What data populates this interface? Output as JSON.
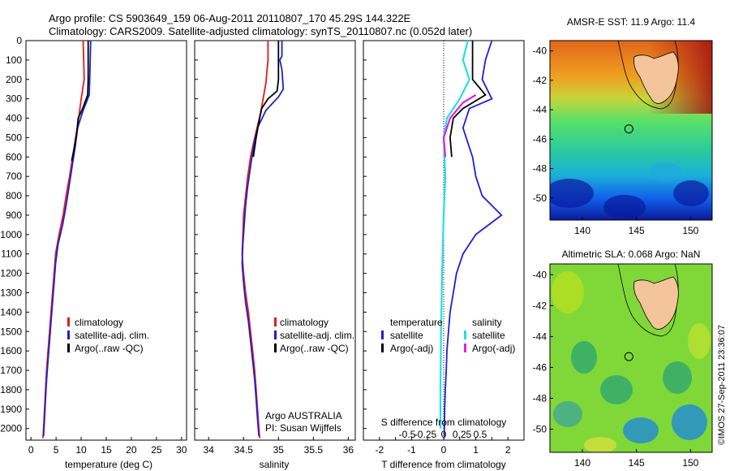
{
  "header": {
    "line1": "Argo profile: CS 5903649_159 06-Aug-2011 20110807_170 45.29S 144.322E",
    "line2": "Climatology: CARS2009. Satellite-adjusted climatology: synTS_20110807.nc (0.052d later)"
  },
  "depth_ticks": [
    "0",
    "100",
    "200",
    "300",
    "400",
    "500",
    "600",
    "700",
    "800",
    "900",
    "1000",
    "1100",
    "1200",
    "1300",
    "1400",
    "1500",
    "1600",
    "1700",
    "1800",
    "1900",
    "2000"
  ],
  "colors": {
    "climatology": "#e41a1c",
    "satellite": "#1f1fd0",
    "argo": "#000000",
    "cyan": "#22e0e0",
    "magenta": "#e020e0"
  },
  "chart_data": [
    {
      "type": "line",
      "panel": "temperature",
      "xlabel": "temperature (deg C)",
      "xlim": [
        -1,
        31
      ],
      "ylim": [
        2060,
        0
      ],
      "xticks": [
        0,
        5,
        10,
        15,
        20,
        25,
        30
      ],
      "legend": [
        "climatology",
        "satellite-adj. clim.",
        "Argo(..raw -QC)"
      ],
      "series": [
        {
          "name": "climatology",
          "color": "#e41a1c",
          "points": [
            [
              10.4,
              0
            ],
            [
              10.5,
              100
            ],
            [
              10.6,
              200
            ],
            [
              10.0,
              300
            ],
            [
              9.5,
              400
            ],
            [
              8.9,
              500
            ],
            [
              8.3,
              600
            ],
            [
              7.7,
              700
            ],
            [
              7.0,
              800
            ],
            [
              6.4,
              900
            ],
            [
              5.6,
              1000
            ],
            [
              4.9,
              1100
            ],
            [
              4.6,
              1200
            ],
            [
              4.3,
              1300
            ],
            [
              4.0,
              1400
            ],
            [
              3.7,
              1500
            ],
            [
              3.4,
              1600
            ],
            [
              3.1,
              1700
            ],
            [
              2.9,
              1800
            ],
            [
              2.7,
              1900
            ],
            [
              2.5,
              2000
            ],
            [
              2.4,
              2050
            ]
          ]
        },
        {
          "name": "satellite-adj. clim.",
          "color": "#1f1fd0",
          "points": [
            [
              11.9,
              0
            ],
            [
              11.8,
              100
            ],
            [
              11.7,
              200
            ],
            [
              11.6,
              280
            ],
            [
              10.4,
              360
            ],
            [
              9.3,
              450
            ],
            [
              8.8,
              550
            ],
            [
              8.2,
              650
            ],
            [
              7.6,
              750
            ],
            [
              7.0,
              850
            ],
            [
              6.3,
              950
            ],
            [
              5.4,
              1050
            ],
            [
              4.9,
              1150
            ],
            [
              4.6,
              1250
            ],
            [
              4.3,
              1350
            ],
            [
              4.0,
              1450
            ],
            [
              3.7,
              1550
            ],
            [
              3.4,
              1650
            ],
            [
              3.1,
              1750
            ],
            [
              2.9,
              1850
            ],
            [
              2.7,
              1950
            ],
            [
              2.5,
              2040
            ]
          ]
        },
        {
          "name": "Argo(..raw -QC)",
          "color": "#000000",
          "points": [
            [
              11.4,
              0
            ],
            [
              11.4,
              100
            ],
            [
              11.4,
              200
            ],
            [
              11.3,
              280
            ],
            [
              10.3,
              350
            ],
            [
              9.4,
              400
            ],
            [
              9.1,
              480
            ],
            [
              8.6,
              560
            ],
            [
              8.1,
              620
            ]
          ]
        }
      ]
    },
    {
      "type": "line",
      "panel": "salinity",
      "xlabel": "salinity",
      "xlim": [
        33.8,
        36.1
      ],
      "ylim": [
        2060,
        0
      ],
      "xticks": [
        34,
        34.5,
        35,
        35.5,
        36
      ],
      "xtick_labels": [
        "34",
        "34.5",
        "35",
        "35.5",
        "36"
      ],
      "legend": [
        "climatology",
        "satellite-adj. clim.",
        "Argo(..raw -QC)"
      ],
      "notes": [
        "Argo AUSTRALIA",
        "PI: Susan Wijffels"
      ],
      "series": [
        {
          "name": "climatology",
          "color": "#e41a1c",
          "points": [
            [
              34.85,
              0
            ],
            [
              34.85,
              100
            ],
            [
              34.82,
              220
            ],
            [
              34.78,
              300
            ],
            [
              34.74,
              380
            ],
            [
              34.66,
              500
            ],
            [
              34.6,
              600
            ],
            [
              34.56,
              700
            ],
            [
              34.53,
              800
            ],
            [
              34.5,
              900
            ],
            [
              34.49,
              1000
            ],
            [
              34.48,
              1100
            ],
            [
              34.5,
              1200
            ],
            [
              34.53,
              1300
            ],
            [
              34.57,
              1400
            ],
            [
              34.6,
              1500
            ],
            [
              34.63,
              1600
            ],
            [
              34.66,
              1700
            ],
            [
              34.68,
              1800
            ],
            [
              34.7,
              1900
            ],
            [
              34.72,
              2000
            ],
            [
              34.73,
              2050
            ]
          ]
        },
        {
          "name": "satellite-adj. clim.",
          "color": "#1f1fd0",
          "points": [
            [
              35.05,
              0
            ],
            [
              35.05,
              80
            ],
            [
              35.02,
              100
            ],
            [
              35.05,
              150
            ],
            [
              35.07,
              250
            ],
            [
              35.0,
              290
            ],
            [
              34.82,
              360
            ],
            [
              34.7,
              450
            ],
            [
              34.64,
              550
            ],
            [
              34.6,
              650
            ],
            [
              34.56,
              750
            ],
            [
              34.53,
              850
            ],
            [
              34.51,
              950
            ],
            [
              34.49,
              1050
            ],
            [
              34.48,
              1150
            ],
            [
              34.5,
              1250
            ],
            [
              34.53,
              1350
            ],
            [
              34.57,
              1450
            ],
            [
              34.6,
              1550
            ],
            [
              34.63,
              1650
            ],
            [
              34.66,
              1750
            ],
            [
              34.68,
              1850
            ],
            [
              34.7,
              1950
            ],
            [
              34.72,
              2040
            ]
          ]
        },
        {
          "name": "Argo(..raw -QC)",
          "color": "#000000",
          "points": [
            [
              35.0,
              0
            ],
            [
              35.0,
              100
            ],
            [
              35.0,
              200
            ],
            [
              34.98,
              260
            ],
            [
              34.85,
              300
            ],
            [
              34.76,
              350
            ],
            [
              34.72,
              420
            ],
            [
              34.68,
              500
            ],
            [
              34.64,
              600
            ]
          ]
        }
      ]
    },
    {
      "type": "line",
      "panel": "difference",
      "xlabel_top": "S difference from climatology",
      "xlabel": "T difference from climatology",
      "xlim": [
        -2.5,
        2.5
      ],
      "ylim": [
        2060,
        0
      ],
      "xticks": [
        -2,
        -1.5,
        -1,
        -0.5,
        0,
        0.5,
        1,
        1.5,
        2
      ],
      "xtick_labels": [
        "-2",
        "",
        "-1",
        "",
        "0",
        "",
        "1",
        "",
        "2"
      ],
      "sticks": [
        -0.5,
        -0.25,
        0,
        0.25,
        0.5
      ],
      "stick_labels": [
        "-0.5",
        "-0.25",
        "0",
        "0.25",
        "0.5"
      ],
      "legend": {
        "titles": [
          "temperature",
          "salinity"
        ],
        "left": [
          "satellite",
          "Argo(-adj)"
        ],
        "right": [
          "satellite",
          "Argo(-adj)"
        ]
      },
      "series": [
        {
          "name": "temperature satellite",
          "color": "#1f1fd0",
          "points": [
            [
              1.5,
              0
            ],
            [
              1.3,
              100
            ],
            [
              1.2,
              200
            ],
            [
              1.5,
              300
            ],
            [
              0.8,
              350
            ],
            [
              0.6,
              450
            ],
            [
              0.9,
              600
            ],
            [
              1.0,
              700
            ],
            [
              1.2,
              800
            ],
            [
              1.8,
              900
            ],
            [
              1.0,
              1000
            ],
            [
              0.6,
              1100
            ],
            [
              0.4,
              1200
            ],
            [
              0.3,
              1300
            ],
            [
              0.2,
              1400
            ],
            [
              0.15,
              1500
            ],
            [
              0.1,
              1600
            ],
            [
              0.08,
              1700
            ],
            [
              0.05,
              1800
            ],
            [
              0.03,
              1900
            ],
            [
              0.02,
              2000
            ],
            [
              0.02,
              2050
            ]
          ]
        },
        {
          "name": "temperature Argo(-adj)",
          "color": "#000000",
          "points": [
            [
              0.9,
              0
            ],
            [
              0.9,
              100
            ],
            [
              0.9,
              200
            ],
            [
              1.3,
              280
            ],
            [
              0.6,
              350
            ],
            [
              0.3,
              400
            ],
            [
              0.2,
              500
            ],
            [
              0.25,
              600
            ]
          ]
        },
        {
          "name": "salinity satellite",
          "color": "#22e0e0",
          "points": [
            [
              0.75,
              0
            ],
            [
              0.6,
              100
            ],
            [
              0.8,
              200
            ],
            [
              0.5,
              300
            ],
            [
              0.1,
              400
            ],
            [
              0.0,
              500
            ],
            [
              0.05,
              700
            ],
            [
              0.0,
              900
            ],
            [
              -0.05,
              1200
            ],
            [
              -0.08,
              1500
            ],
            [
              -0.1,
              1800
            ],
            [
              -0.1,
              2000
            ]
          ]
        },
        {
          "name": "salinity Argo(-adj)",
          "color": "#e020e0",
          "points": [
            [
              1.0,
              280
            ],
            [
              0.6,
              320
            ],
            [
              0.2,
              400
            ],
            [
              0.0,
              500
            ],
            [
              0.05,
              600
            ]
          ]
        }
      ]
    },
    {
      "type": "heatmap",
      "panel": "sst-map",
      "title": "AMSR-E SST: 11.9 Argo: 11.4",
      "xticks": [
        140,
        145,
        150
      ],
      "yticks": [
        -40,
        -42,
        -44,
        -46,
        -48,
        -50
      ],
      "xlim": [
        137,
        152
      ],
      "ylim": [
        -51.5,
        -39.3
      ],
      "marker": {
        "lon": 144.3,
        "lat": -45.3
      }
    },
    {
      "type": "heatmap",
      "panel": "sla-map",
      "title": "Altimetric SLA: 0.068 Argo: NaN",
      "xticks": [
        140,
        145,
        150
      ],
      "yticks": [
        -40,
        -42,
        -44,
        -46,
        -48,
        -50
      ],
      "xlim": [
        137,
        152
      ],
      "ylim": [
        -51.5,
        -39.3
      ],
      "marker": {
        "lon": 144.3,
        "lat": -45.3
      }
    }
  ],
  "credit": "©IMOS 27-Sep-2011 23:36:07"
}
